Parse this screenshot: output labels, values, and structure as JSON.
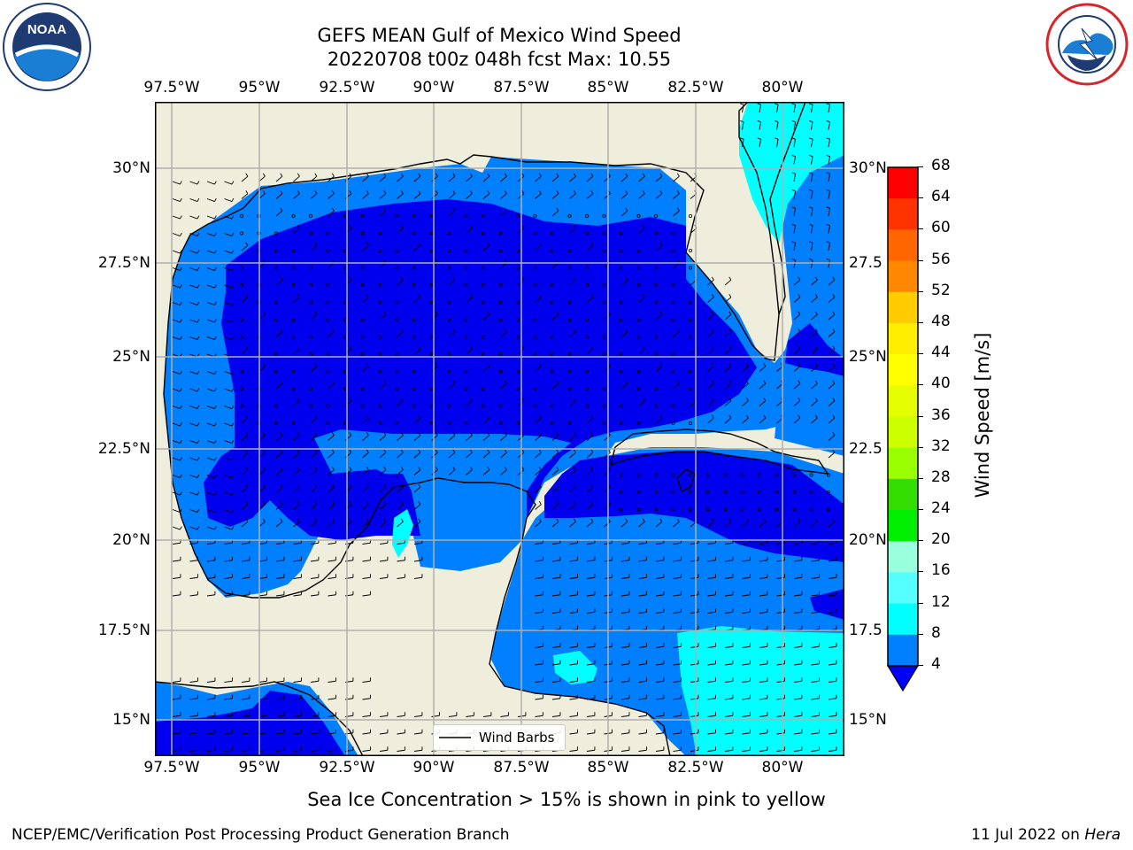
{
  "title": {
    "line1": "GEFS MEAN Gulf of Mexico Wind Speed",
    "line2": "20220708 t00z 048h fcst   Max: 10.55"
  },
  "logos": {
    "left": "NOAA",
    "left_ring": "NATIONAL OCEANIC AND ATMOSPHERIC ADMINISTRATION",
    "right_ring": "NATIONAL WEATHER SERVICE"
  },
  "axes": {
    "lon_labels": [
      "97.5°W",
      "95°W",
      "92.5°W",
      "90°W",
      "87.5°W",
      "85°W",
      "82.5°W",
      "80°W"
    ],
    "lat_labels_left": [
      "30°N",
      "27.5°N",
      "25°N",
      "22.5°N",
      "20°N",
      "17.5°N",
      "15°N"
    ],
    "lat_labels_right": [
      "30°N",
      "27.5",
      "25°N",
      "22.5",
      "20°N",
      "17.5",
      "15°N"
    ]
  },
  "legend": {
    "label": "Wind Barbs"
  },
  "colorbar": {
    "label": "Wind Speed [m/s]",
    "ticks": [
      "68",
      "64",
      "60",
      "56",
      "52",
      "48",
      "44",
      "40",
      "36",
      "32",
      "28",
      "24",
      "20",
      "16",
      "12",
      "8",
      "4"
    ],
    "colors": [
      "#ff0000",
      "#ff3300",
      "#ff6600",
      "#ff8800",
      "#ffaa00",
      "#ffcc00",
      "#ffee00",
      "#ffff00",
      "#e6ff00",
      "#ccff00",
      "#99ff00",
      "#33dd00",
      "#00ee00",
      "#55ff77",
      "#99ffdd",
      "#55ffff",
      "#00ffff",
      "#0080ff",
      "#0000ff"
    ]
  },
  "map_colors": {
    "land": "#efeedc",
    "wind_4_8": "#0080ff",
    "wind_below_4": "#0000ee",
    "wind_8_12": "#00ffff",
    "grid": "#b0b0b0"
  },
  "caption": "Sea Ice Concentration > 15% is shown in pink to yellow",
  "footer": {
    "left": "NCEP/EMC/Verification Post Processing Product Generation Branch",
    "right_prefix": "11 Jul 2022 on ",
    "right_italic": "Hera"
  }
}
